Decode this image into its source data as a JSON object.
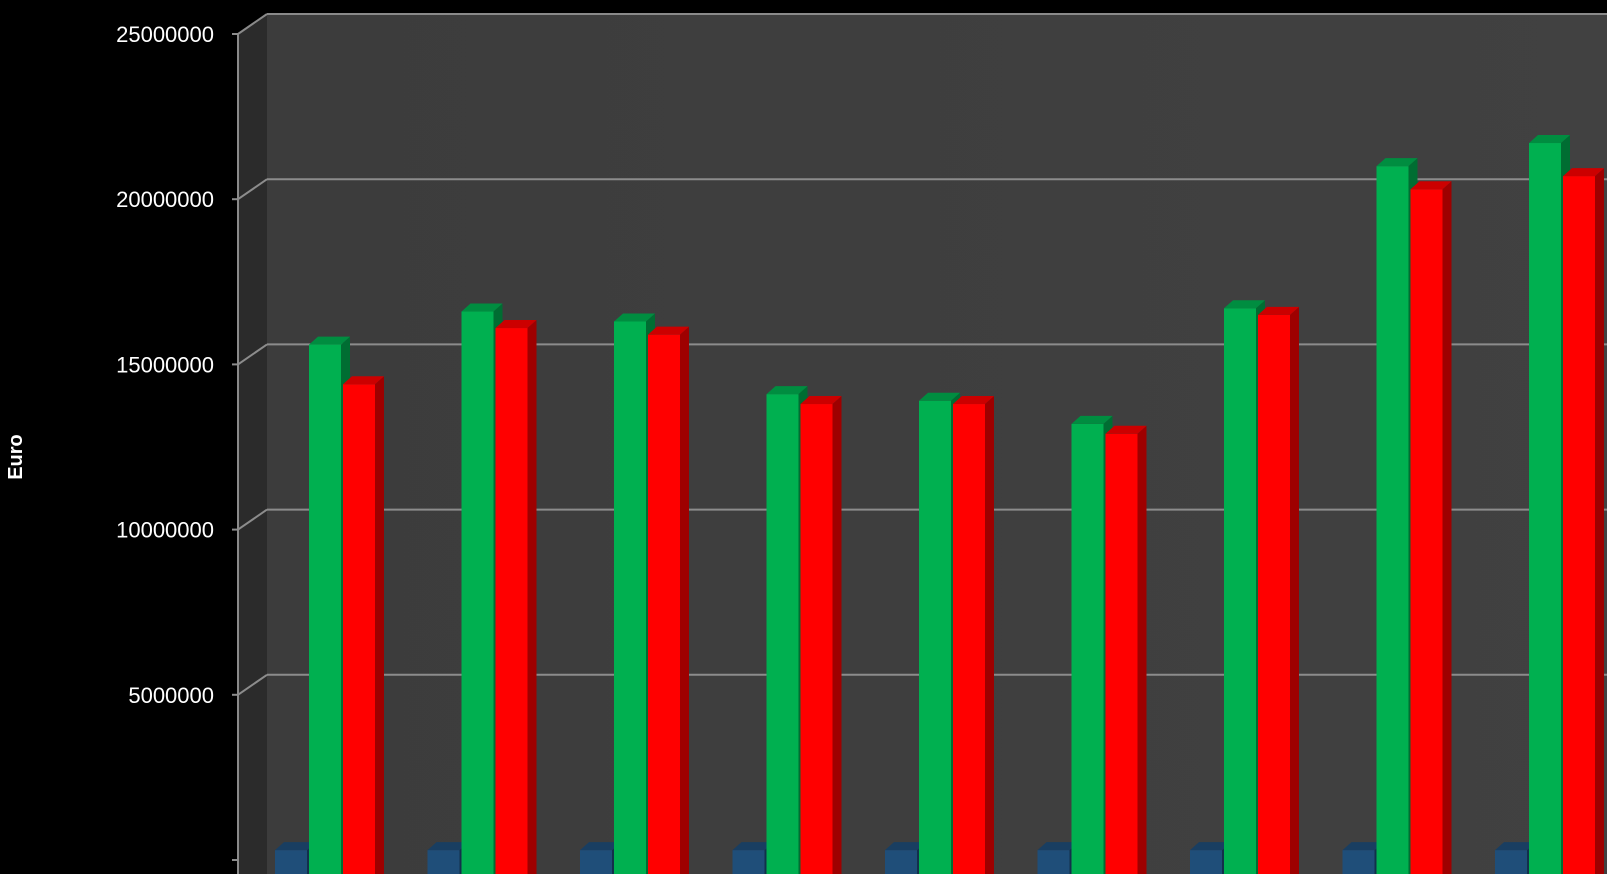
{
  "chart_data": {
    "type": "bar",
    "ylabel": "Euro",
    "ylim": [
      0,
      25000000
    ],
    "yticks": [
      "5000000",
      "10000000",
      "15000000",
      "20000000",
      "25000000"
    ],
    "grid": true,
    "categories": [
      "",
      "",
      "",
      "",
      "",
      "",
      "",
      "",
      ""
    ],
    "series": [
      {
        "values": [
          300000,
          300000,
          300000,
          300000,
          300000,
          300000,
          300000,
          300000,
          300000
        ],
        "color": "#1F4E79"
      },
      {
        "values": [
          15600000,
          16600000,
          16300000,
          14100000,
          13900000,
          13200000,
          16700000,
          21000000,
          21700000
        ],
        "color": "#00B050"
      },
      {
        "values": [
          14400000,
          16100000,
          15900000,
          13800000,
          13800000,
          12900000,
          16500000,
          20300000,
          20700000
        ],
        "color": "#FF0000"
      }
    ]
  }
}
